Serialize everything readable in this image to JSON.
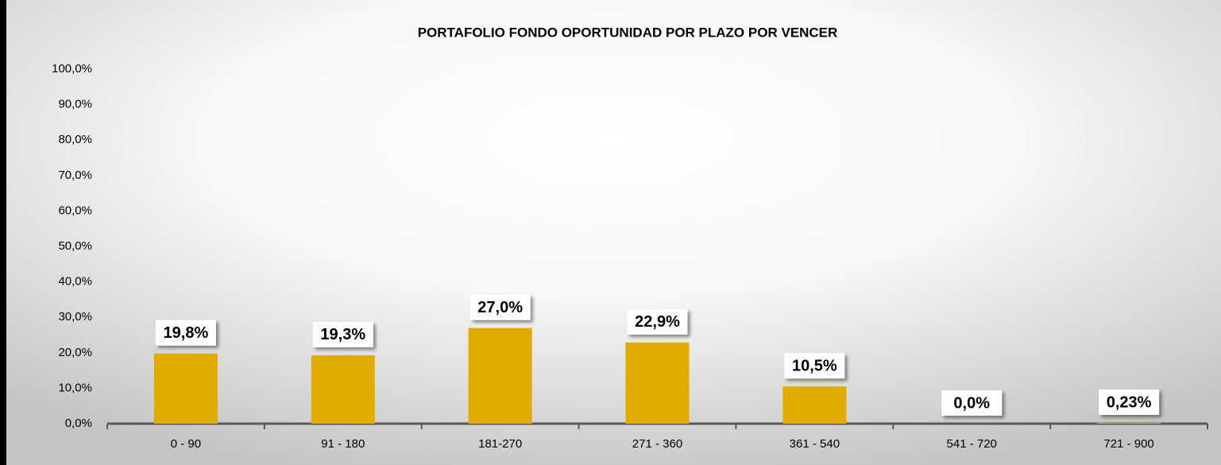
{
  "chart_data": {
    "type": "bar",
    "title": "PORTAFOLIO FONDO OPORTUNIDAD POR PLAZO POR VENCER",
    "categories": [
      "0 - 90",
      "91 - 180",
      "181-270",
      "271 - 360",
      "361 - 540",
      "541 - 720",
      "721 - 900"
    ],
    "values": [
      19.8,
      19.3,
      27.0,
      22.9,
      10.5,
      0.0,
      0.23
    ],
    "value_labels": [
      "19,8%",
      "19,3%",
      "27,0%",
      "22,9%",
      "10,5%",
      "0,0%",
      "0,23%"
    ],
    "color": "#e2ab00",
    "ylim": [
      0,
      100
    ],
    "yticks": [
      {
        "value": 0,
        "label": "0,0%"
      },
      {
        "value": 10,
        "label": "10,0%"
      },
      {
        "value": 20,
        "label": "20,0%"
      },
      {
        "value": 30,
        "label": "30,0%"
      },
      {
        "value": 40,
        "label": "40,0%"
      },
      {
        "value": 50,
        "label": "50,0%"
      },
      {
        "value": 60,
        "label": "60,0%"
      },
      {
        "value": 70,
        "label": "70,0%"
      },
      {
        "value": 80,
        "label": "80,0%"
      },
      {
        "value": 90,
        "label": "90,0%"
      },
      {
        "value": 100,
        "label": "100,0%"
      }
    ],
    "grid": false
  }
}
